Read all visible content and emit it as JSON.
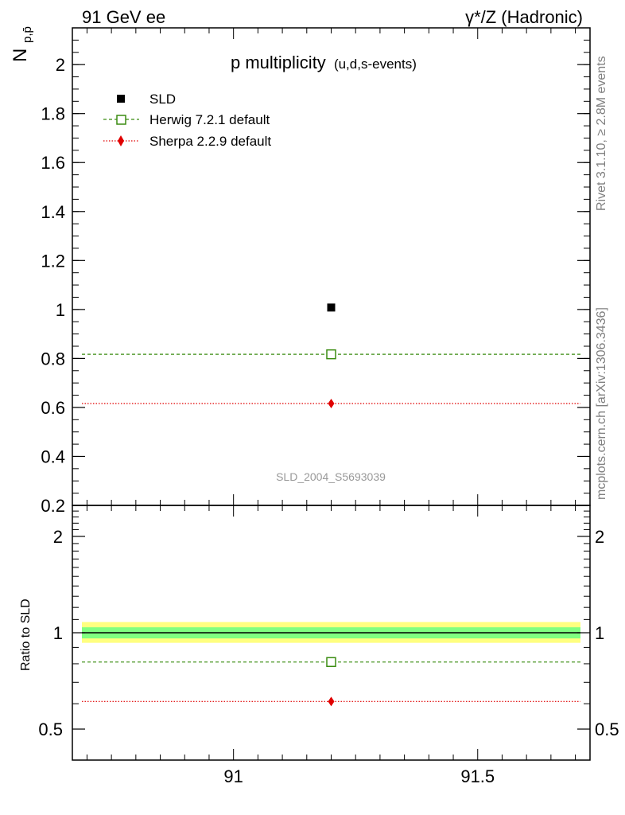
{
  "header": {
    "left": "91 GeV ee",
    "right": "γ*/Z (Hadronic)"
  },
  "side_labels": {
    "rivet": "Rivet 3.1.10, ≥ 2.8M events",
    "mcplots": "mcplots.cern.ch [arXiv:1306.3436]"
  },
  "watermark": "SLD_2004_S5693039",
  "colors": {
    "data": "#000000",
    "herwig": "#3a8c10",
    "sherpa": "#e00000",
    "band_inner": "#80ff80",
    "band_outer": "#ffff80"
  },
  "chart_data": [
    {
      "type": "scatter",
      "title": "p multiplicity",
      "title_suffix": "(u,d,s-events)",
      "ylabel": "N",
      "ylabel_sub": "p,p̄",
      "ylim": [
        0.2,
        2.15
      ],
      "xlim": [
        90.67,
        91.73
      ],
      "yticks": [
        0.2,
        0.4,
        0.6,
        0.8,
        1,
        1.2,
        1.4,
        1.6,
        1.8,
        2
      ],
      "ytick_labels": [
        "0.2",
        "0.4",
        "0.6",
        "0.8",
        "1",
        "1.2",
        "1.4",
        "1.6",
        "1.8",
        "2"
      ],
      "legend_position": "top-left",
      "series": [
        {
          "name": "SLD",
          "x": [
            91.2
          ],
          "y": [
            1.008
          ],
          "style": "data"
        },
        {
          "name": "Herwig 7.2.1 default",
          "x": [
            91.2
          ],
          "y": [
            0.817
          ],
          "style": "herwig",
          "line": [
            90.67,
            91.73
          ]
        },
        {
          "name": "Sherpa 2.2.9 default",
          "x": [
            91.2
          ],
          "y": [
            0.616
          ],
          "style": "sherpa",
          "line": [
            90.67,
            91.73
          ]
        }
      ]
    },
    {
      "type": "line",
      "ylabel": "Ratio to SLD",
      "xlim": [
        90.67,
        91.73
      ],
      "ylim": [
        0.4,
        2.5
      ],
      "scale": "log",
      "xticks": [
        91,
        91.5
      ],
      "xtick_labels": [
        "91",
        "91.5"
      ],
      "yticks": [
        0.5,
        1,
        2
      ],
      "ytick_labels": [
        "0.5",
        "1",
        "2"
      ],
      "bands": {
        "inner": [
          0.96,
          1.04
        ],
        "outer": [
          0.93,
          1.08
        ]
      },
      "series": [
        {
          "name": "SLD",
          "y": 1.0,
          "style": "data"
        },
        {
          "name": "Herwig 7.2.1 default",
          "x": 91.2,
          "y": 0.81,
          "style": "herwig"
        },
        {
          "name": "Sherpa 2.2.9 default",
          "x": 91.2,
          "y": 0.61,
          "style": "sherpa"
        }
      ]
    }
  ]
}
